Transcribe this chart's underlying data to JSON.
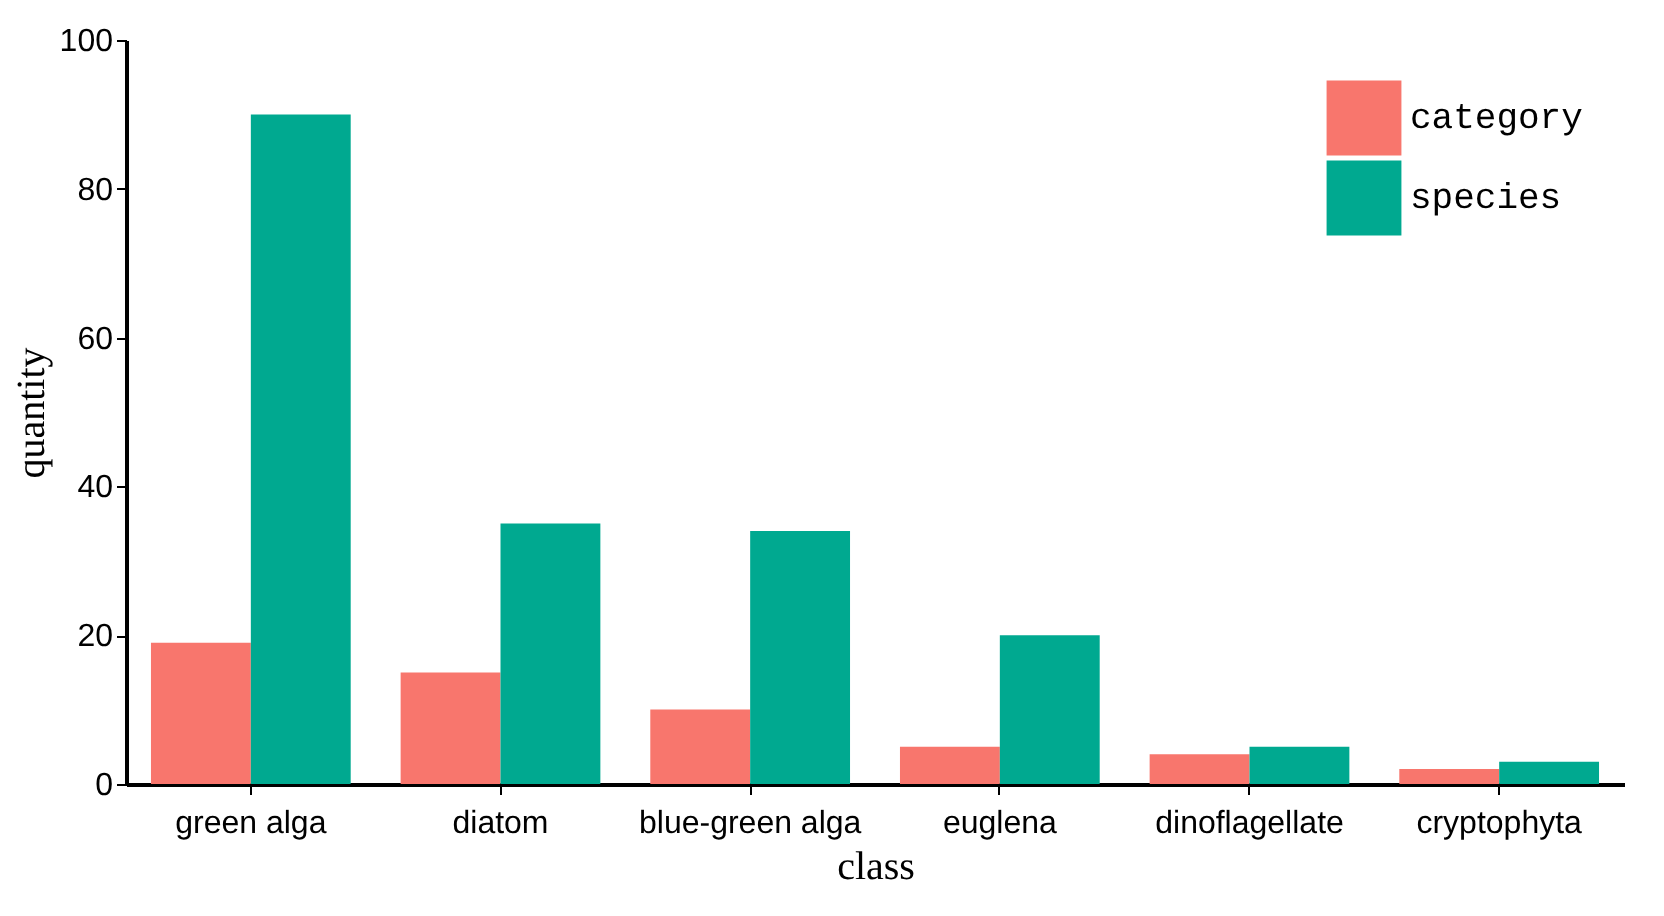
{
  "chart_data": {
    "type": "bar",
    "xlabel": "class",
    "ylabel": "quantity",
    "categories": [
      "green alga",
      "diatom",
      "blue-green alga",
      "euglena",
      "dinoflagellate",
      "cryptophyta"
    ],
    "series": [
      {
        "name": "category",
        "color": "#f8766d",
        "values": [
          19,
          15,
          10,
          5,
          4,
          2
        ]
      },
      {
        "name": "species",
        "color": "#00a990",
        "values": [
          90,
          35,
          34,
          20,
          5,
          3
        ]
      }
    ],
    "ylim": [
      0,
      100
    ],
    "yticks": [
      0,
      20,
      40,
      60,
      80,
      100
    ],
    "grid": false,
    "legend": "top right"
  }
}
